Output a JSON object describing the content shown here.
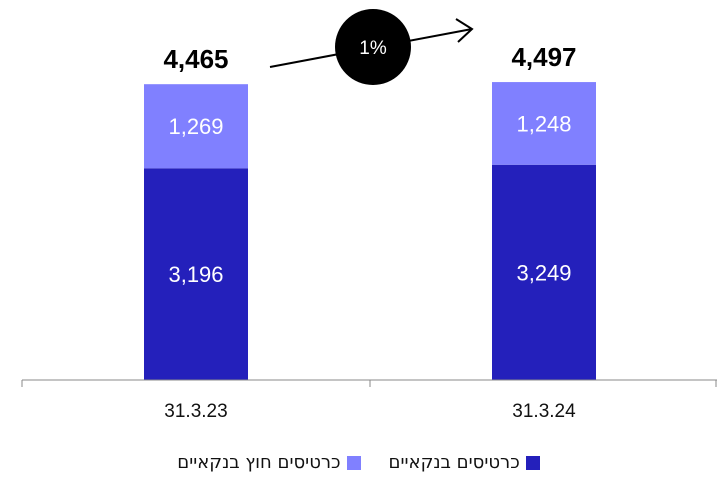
{
  "chart_data": {
    "type": "bar",
    "stacked": true,
    "categories": [
      "31.3.23",
      "31.3.24"
    ],
    "series": [
      {
        "name": "כרטיסים בנקאיים",
        "values": [
          3196,
          3249
        ],
        "color": "#2420bb",
        "labels": [
          "3,196",
          "3,249"
        ]
      },
      {
        "name": "כרטיסים חוץ בנקאיים",
        "values": [
          1269,
          1248
        ],
        "color": "#8080ff",
        "labels": [
          "1,269",
          "1,248"
        ]
      }
    ],
    "totals": [
      4465,
      4497
    ],
    "total_labels": [
      "4,465",
      "4,497"
    ],
    "annotation": {
      "label": "1%",
      "direction": "increase"
    },
    "ylim": [
      0,
      4800
    ],
    "grid": false,
    "legend_position": "bottom"
  }
}
